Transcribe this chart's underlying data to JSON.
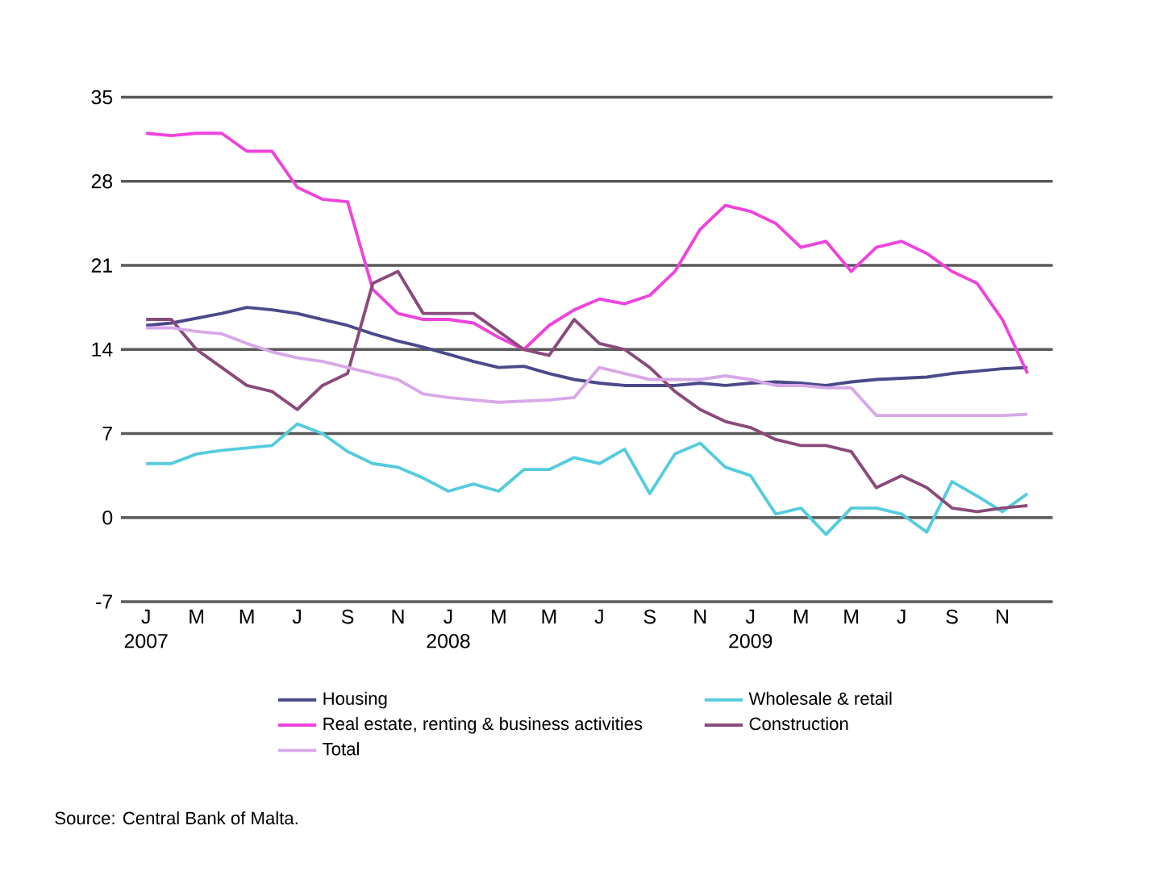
{
  "chart_data": {
    "type": "line",
    "x": [
      "2007-01",
      "2007-02",
      "2007-03",
      "2007-04",
      "2007-05",
      "2007-06",
      "2007-07",
      "2007-08",
      "2007-09",
      "2007-10",
      "2007-11",
      "2007-12",
      "2008-01",
      "2008-02",
      "2008-03",
      "2008-04",
      "2008-05",
      "2008-06",
      "2008-07",
      "2008-08",
      "2008-09",
      "2008-10",
      "2008-11",
      "2008-12",
      "2009-01",
      "2009-02",
      "2009-03",
      "2009-04",
      "2009-05",
      "2009-06",
      "2009-07",
      "2009-08",
      "2009-09",
      "2009-10",
      "2009-11",
      "2009-12"
    ],
    "series": [
      {
        "name": "Housing",
        "color": "#4a4a8a",
        "values": [
          16,
          16.2,
          16.6,
          17,
          17.5,
          17.3,
          17,
          16.5,
          16,
          15.3,
          14.7,
          14.2,
          13.6,
          13,
          12.5,
          12.6,
          12,
          11.5,
          11.2,
          11,
          11,
          11,
          11.2,
          11,
          11.2,
          11.3,
          11.2,
          11,
          11.3,
          11.5,
          11.6,
          11.7,
          12,
          12.2,
          12.4,
          12.5
        ]
      },
      {
        "name": "Wholesale & retail",
        "color": "#55ccdd",
        "values": [
          4.5,
          4.5,
          5.3,
          5.6,
          5.8,
          6,
          7.8,
          7,
          5.5,
          4.5,
          4.2,
          3.3,
          2.2,
          2.8,
          2.2,
          4,
          4,
          5,
          4.5,
          5.7,
          2,
          5.3,
          6.2,
          4.2,
          3.5,
          0.3,
          0.8,
          -1.4,
          0.8,
          0.8,
          0.3,
          -1.2,
          3,
          1.8,
          0.5,
          2
        ]
      },
      {
        "name": "Real estate, renting & business activities",
        "color": "#ee44dd",
        "values": [
          32,
          31.8,
          32,
          32,
          30.5,
          30.5,
          27.5,
          26.5,
          26.3,
          19,
          17,
          16.5,
          16.5,
          16.2,
          15,
          14,
          16,
          17.3,
          18.2,
          17.8,
          18.5,
          20.5,
          24,
          26,
          25.5,
          24.5,
          22.5,
          23,
          20.5,
          22.5,
          23,
          22,
          20.5,
          19.5,
          16.5,
          12
        ]
      },
      {
        "name": "Construction",
        "color": "#8a4a7a",
        "values": [
          16.5,
          16.5,
          14,
          12.5,
          11,
          10.5,
          9,
          11,
          12,
          19.5,
          20.5,
          17,
          17,
          17,
          15.5,
          14,
          13.5,
          16.5,
          14.5,
          14,
          12.5,
          10.5,
          9,
          8,
          7.5,
          6.5,
          6,
          6,
          5.5,
          2.5,
          3.5,
          2.5,
          0.8,
          0.5,
          0.8,
          1
        ]
      },
      {
        "name": "Total",
        "color": "#d8a8e8",
        "values": [
          15.8,
          15.8,
          15.5,
          15.3,
          14.5,
          13.8,
          13.3,
          13,
          12.5,
          12,
          11.5,
          10.3,
          10,
          9.8,
          9.6,
          9.7,
          9.8,
          10,
          12.5,
          12,
          11.5,
          11.5,
          11.5,
          11.8,
          11.5,
          11,
          11,
          10.8,
          10.8,
          8.5,
          8.5,
          8.5,
          8.5,
          8.5,
          8.5,
          8.6
        ]
      }
    ],
    "xlim": [
      "2006-12",
      "2010-01"
    ],
    "xticks": [
      {
        "value": "2007-01",
        "label": "J 2007"
      },
      {
        "value": "2007-03",
        "label": "M"
      },
      {
        "value": "2007-05",
        "label": "M"
      },
      {
        "value": "2007-07",
        "label": "J"
      },
      {
        "value": "2007-09",
        "label": "S"
      },
      {
        "value": "2007-11",
        "label": "N"
      },
      {
        "value": "2008-01",
        "label": "J 2008"
      },
      {
        "value": "2008-03",
        "label": "M"
      },
      {
        "value": "2008-05",
        "label": "M"
      },
      {
        "value": "2008-07",
        "label": "J"
      },
      {
        "value": "2008-09",
        "label": "S"
      },
      {
        "value": "2008-11",
        "label": "N"
      },
      {
        "value": "2009-01",
        "label": "J 2009"
      },
      {
        "value": "2009-03",
        "label": "M"
      },
      {
        "value": "2009-05",
        "label": "M"
      },
      {
        "value": "2009-07",
        "label": "J"
      },
      {
        "value": "2009-09",
        "label": "S"
      },
      {
        "value": "2009-11",
        "label": "N"
      }
    ],
    "ylim": [
      -7,
      35
    ],
    "yticks": [
      -7,
      0,
      7,
      14,
      21,
      28,
      35
    ],
    "grid": "y",
    "legend": "bottom",
    "line_style": "solid",
    "annotations": [
      "Source: Central Bank of Malta."
    ]
  }
}
